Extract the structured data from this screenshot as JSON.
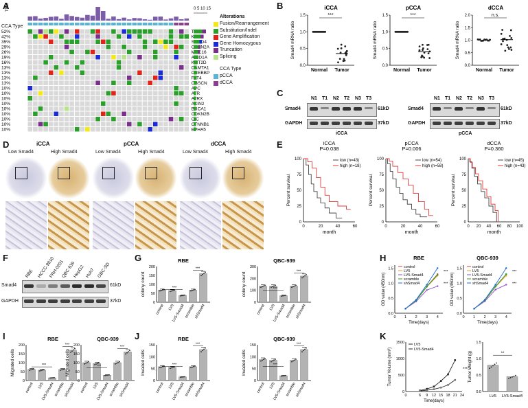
{
  "panels": {
    "A": "A",
    "B": "B",
    "C": "C",
    "D": "D",
    "E": "E",
    "F": "F",
    "G": "G",
    "H": "H",
    "I": "I",
    "J": "J",
    "K": "K"
  },
  "A": {
    "tmb_label": "TMB",
    "cca_type_label": "CCA Type",
    "scale_label": "0 5 10 15",
    "genes": [
      "TP53",
      "KRAS",
      "SMAD4",
      "CDKN2A",
      "MUC16",
      "ARID1A",
      "KMT2D",
      "CAMTA1",
      "CREBBP",
      "FAT4",
      "OBSCN",
      "APC",
      "ATR",
      "ATRX",
      "AXIN2",
      "BRCA1",
      "CDKN2B",
      "CIC",
      "CTNNB1",
      "EPHA5"
    ],
    "pcts": [
      "52%",
      "42%",
      "35%",
      "29%",
      "26%",
      "19%",
      "16%",
      "13%",
      "13%",
      "13%",
      "13%",
      "10%",
      "10%",
      "10%",
      "10%",
      "10%",
      "10%",
      "10%",
      "10%",
      "10%"
    ],
    "legend_title": "Alterations",
    "legend": [
      {
        "label": "Fusion/Rearrangement",
        "color": "#f3e81a"
      },
      {
        "label": "Substitution/Indel",
        "color": "#2aa02b"
      },
      {
        "label": "Gene Amplification",
        "color": "#e2231a"
      },
      {
        "label": "Gene Homozygous",
        "color": "#1a2bd8"
      },
      {
        "label": "Truncation",
        "color": "#7b2f8c"
      },
      {
        "label": "Splicing",
        "color": "#b8e38b"
      }
    ],
    "cca_legend_title": "CCA Type",
    "cca_legend": [
      {
        "label": "pCCA",
        "color": "#5ab4d6"
      },
      {
        "label": "dCCA",
        "color": "#8c3f92"
      }
    ]
  },
  "B": {
    "plots": [
      {
        "title": "iCCA",
        "ylabel": "Smad4 mRNA ratio",
        "sig": "***",
        "x": [
          "Normal",
          "Tumor"
        ],
        "normal": 1.0,
        "tumor": 0.35,
        "ylim": [
          0,
          1.5
        ],
        "ticks": [
          "0.0",
          "0.5",
          "1.0",
          "1.5"
        ]
      },
      {
        "title": "pCCA",
        "ylabel": "Smad4 mRNA ratio",
        "sig": "***",
        "x": [
          "Normal",
          "Tumor"
        ],
        "normal": 1.0,
        "tumor": 0.4,
        "ylim": [
          0,
          1.5
        ],
        "ticks": [
          "0.0",
          "0.5",
          "1.0",
          "1.5"
        ]
      },
      {
        "title": "dCCA",
        "ylabel": "Smad4 mRNA ratio",
        "sig": "n.s.",
        "x": [
          "Normal",
          "Tumor"
        ],
        "normal": 1.0,
        "tumor": 1.02,
        "ylim": [
          0,
          2.0
        ],
        "ticks": [
          "0.0",
          "0.5",
          "1.0",
          "1.5",
          "2.0"
        ]
      }
    ]
  },
  "C": {
    "lanes": [
      "N1",
      "T1",
      "N2",
      "T2",
      "N3",
      "T3"
    ],
    "rows": [
      "Smad4",
      "GAPDH"
    ],
    "kd": [
      "61kD",
      "37kD"
    ],
    "groups": [
      "iCCA",
      "pCCA"
    ]
  },
  "D": {
    "groups": [
      "iCCA",
      "pCCA",
      "dCCA"
    ],
    "low": "Low Smad4",
    "high": "High Smad4"
  },
  "E": {
    "plots": [
      {
        "title": "iCCA",
        "p": "P=0.038",
        "low": "low (n=43)",
        "high": "high (n=18)",
        "xticks": [
          "0",
          "20",
          "40",
          "60"
        ]
      },
      {
        "title": "pCCA",
        "p": "P=0.006",
        "low": "low (n=54)",
        "high": "high (n=58)",
        "xticks": [
          "0",
          "20",
          "40",
          "60"
        ]
      },
      {
        "title": "dCCA",
        "p": "P=0.360",
        "low": "low (n=45)",
        "high": "high (n=43)",
        "xticks": [
          "0",
          "20",
          "40",
          "60",
          "80",
          "100"
        ]
      }
    ],
    "ylabel": "Percent survival",
    "xlabel": "month",
    "yticks": [
      "0",
      "25",
      "50",
      "75",
      "100"
    ]
  },
  "F": {
    "lanes": [
      "RBE",
      "HCCC-9810",
      "FRH-0201",
      "QBC-939",
      "HepG2",
      "Huh7",
      "GBC-SD"
    ],
    "rows": [
      "Smad4",
      "GAPDH"
    ],
    "kd": [
      "61kD",
      "37kD"
    ]
  },
  "G": {
    "plots": [
      {
        "title": "RBE",
        "values": [
          68,
          65,
          38,
          68,
          160
        ]
      },
      {
        "title": "QBC-939",
        "values": [
          135,
          135,
          55,
          135,
          220
        ]
      }
    ],
    "ylabel": "colony count",
    "groups": [
      "control",
      "LV5",
      "LV5-Smad4",
      "scramble",
      "shSmad4"
    ],
    "sig": "***"
  },
  "H": {
    "plots": [
      {
        "title": "RBE"
      },
      {
        "title": "QBC-939"
      }
    ],
    "ylabel": "OD value (450nm)",
    "xlabel": "Time(days)",
    "series": [
      "control",
      "LV5",
      "LV5-Smad4",
      "scramble",
      "shSmad4"
    ],
    "xticks": [
      "0",
      "1",
      "2",
      "3",
      "4"
    ],
    "yticks": [
      "0.0",
      "0.5",
      "1.0",
      "1.5"
    ],
    "sig": "***"
  },
  "I": {
    "plots": [
      {
        "title": "RBE",
        "values": [
          62,
          58,
          15,
          62,
          170
        ]
      },
      {
        "title": "QBC-939",
        "values": [
          100,
          95,
          30,
          100,
          160
        ]
      }
    ],
    "ylabel": "Migrated cells",
    "groups": [
      "control",
      "LV5",
      "LV5-Smad4",
      "scramble",
      "shSmad4"
    ],
    "sig": "***"
  },
  "J": {
    "plots": [
      {
        "title": "RBE",
        "values": [
          58,
          55,
          15,
          58,
          130
        ]
      },
      {
        "title": "QBC-939",
        "values": [
          88,
          85,
          20,
          85,
          130
        ]
      }
    ],
    "ylabel": "Invaded cells",
    "groups": [
      "control",
      "LV5",
      "LV5-Smad4",
      "scramble",
      "shSmad4"
    ],
    "sig": "***"
  },
  "K": {
    "vol_ylabel": "Tumor Volume (mm³)",
    "weight_ylabel": "Tumor Weight (g)",
    "xlabel": "Time(days)",
    "series": [
      "LV5",
      "LV5-Smad4"
    ],
    "xticks": [
      "0",
      "6",
      "9",
      "12",
      "15",
      "18",
      "21",
      "24"
    ],
    "sig1": "***",
    "sig2": "**",
    "bars": [
      "LV5",
      "LV5-Smad4"
    ]
  },
  "chart_data": [
    {
      "type": "scatter",
      "title": "iCCA",
      "ylabel": "Smad4 mRNA ratio",
      "categories": [
        "Normal",
        "Tumor"
      ],
      "values": [
        1.0,
        0.35
      ],
      "ylim": [
        0,
        1.5
      ]
    },
    {
      "type": "scatter",
      "title": "pCCA",
      "ylabel": "Smad4 mRNA ratio",
      "categories": [
        "Normal",
        "Tumor"
      ],
      "values": [
        1.0,
        0.4
      ],
      "ylim": [
        0,
        1.5
      ]
    },
    {
      "type": "scatter",
      "title": "dCCA",
      "ylabel": "Smad4 mRNA ratio",
      "categories": [
        "Normal",
        "Tumor"
      ],
      "values": [
        1.0,
        1.02
      ],
      "ylim": [
        0,
        2.0
      ]
    },
    {
      "type": "bar",
      "title": "RBE",
      "ylabel": "colony count",
      "categories": [
        "control",
        "LV5",
        "LV5-Smad4",
        "scramble",
        "shSmad4"
      ],
      "values": [
        68,
        65,
        38,
        68,
        160
      ]
    },
    {
      "type": "bar",
      "title": "QBC-939",
      "ylabel": "colony count",
      "categories": [
        "control",
        "LV5",
        "LV5-Smad4",
        "scramble",
        "shSmad4"
      ],
      "values": [
        135,
        135,
        55,
        135,
        220
      ]
    },
    {
      "type": "bar",
      "title": "RBE",
      "ylabel": "Migrated cells",
      "categories": [
        "control",
        "LV5",
        "LV5-Smad4",
        "scramble",
        "shSmad4"
      ],
      "values": [
        62,
        58,
        15,
        62,
        170
      ]
    },
    {
      "type": "bar",
      "title": "QBC-939",
      "ylabel": "Migrated cells",
      "categories": [
        "control",
        "LV5",
        "LV5-Smad4",
        "scramble",
        "shSmad4"
      ],
      "values": [
        100,
        95,
        30,
        100,
        160
      ]
    },
    {
      "type": "bar",
      "title": "RBE",
      "ylabel": "Invaded cells",
      "categories": [
        "control",
        "LV5",
        "LV5-Smad4",
        "scramble",
        "shSmad4"
      ],
      "values": [
        58,
        55,
        15,
        58,
        130
      ]
    },
    {
      "type": "bar",
      "title": "QBC-939",
      "ylabel": "Invaded cells",
      "categories": [
        "control",
        "LV5",
        "LV5-Smad4",
        "scramble",
        "shSmad4"
      ],
      "values": [
        88,
        85,
        20,
        85,
        130
      ]
    },
    {
      "type": "line",
      "ylabel": "Tumor Volume (mm³)",
      "xlabel": "Time(days)",
      "x": [
        6,
        9,
        12,
        15,
        18,
        21
      ],
      "series": [
        {
          "name": "LV5",
          "values": [
            30,
            80,
            150,
            320,
            520,
            950
          ]
        },
        {
          "name": "LV5-Smad4",
          "values": [
            20,
            40,
            70,
            120,
            200,
            350
          ]
        }
      ]
    },
    {
      "type": "bar",
      "ylabel": "Tumor Weight (g)",
      "categories": [
        "LV5",
        "LV5-Smad4"
      ],
      "values": [
        0.8,
        0.45
      ],
      "ylim": [
        0,
        1.5
      ]
    }
  ]
}
